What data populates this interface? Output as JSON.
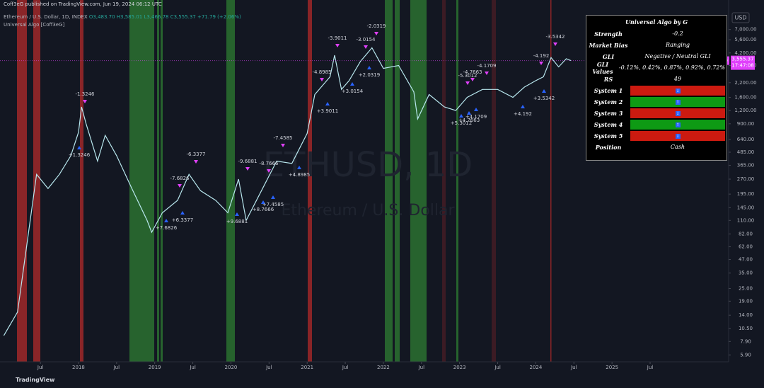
{
  "header": {
    "published": "Coff3eG published on TradingView.com, Jun 19, 2024 06:12 UTC",
    "symbol": "Ethereum / U.S. Dollar, 1D, INDEX",
    "ohlc": "O3,483.70 H3,585.01 L3,466.78 C3,555.37 +71.79 (+2.06%)",
    "indicator": "Universal Algo [Coff3eG]"
  },
  "watermark": {
    "symbol": "ETHUSD, 1D",
    "name": "Ethereum / U.S. Dollar"
  },
  "currency": "USD",
  "price_tag": {
    "symbol": "ETHUSD",
    "price": "3,555.37",
    "countdown": "17:47:08",
    "value": 3555.37
  },
  "chart": {
    "scale": "log",
    "ylim": [
      5.08,
      13290
    ],
    "xlim": [
      2016.97,
      2026.53
    ],
    "yticks": [
      {
        "value": 7000,
        "label": "7,000.00"
      },
      {
        "value": 5600,
        "label": "5,600.00"
      },
      {
        "value": 4200,
        "label": "4,200.00"
      },
      {
        "value": 3200,
        "label": "3,200.00"
      },
      {
        "value": 2200,
        "label": "2,200.00"
      },
      {
        "value": 1600,
        "label": "1,600.00"
      },
      {
        "value": 1200,
        "label": "1,200.00"
      },
      {
        "value": 900,
        "label": "900.00"
      },
      {
        "value": 640,
        "label": "640.00"
      },
      {
        "value": 485,
        "label": "485.00"
      },
      {
        "value": 365,
        "label": "365.00"
      },
      {
        "value": 270,
        "label": "270.00"
      },
      {
        "value": 195,
        "label": "195.00"
      },
      {
        "value": 145,
        "label": "145.00"
      },
      {
        "value": 110,
        "label": "110.00"
      },
      {
        "value": 82,
        "label": "82.00"
      },
      {
        "value": 62,
        "label": "62.00"
      },
      {
        "value": 47,
        "label": "47.00"
      },
      {
        "value": 35,
        "label": "35.00"
      },
      {
        "value": 25,
        "label": "25.00"
      },
      {
        "value": 19,
        "label": "19.00"
      },
      {
        "value": 14,
        "label": "14.00"
      },
      {
        "value": 10.5,
        "label": "10.50"
      },
      {
        "value": 7.9,
        "label": "7.90"
      },
      {
        "value": 5.9,
        "label": "5.90"
      }
    ],
    "xticks": [
      {
        "value": 2017.5,
        "label": "Jul"
      },
      {
        "value": 2018,
        "label": "2018"
      },
      {
        "value": 2018.5,
        "label": "Jul"
      },
      {
        "value": 2019,
        "label": "2019"
      },
      {
        "value": 2019.5,
        "label": "Jul"
      },
      {
        "value": 2020,
        "label": "2020"
      },
      {
        "value": 2020.5,
        "label": "Jul"
      },
      {
        "value": 2021,
        "label": "2021"
      },
      {
        "value": 2021.5,
        "label": "Jul"
      },
      {
        "value": 2022,
        "label": "2022"
      },
      {
        "value": 2022.5,
        "label": "Jul"
      },
      {
        "value": 2023,
        "label": "2023"
      },
      {
        "value": 2023.5,
        "label": "Jul"
      },
      {
        "value": 2024,
        "label": "2024"
      },
      {
        "value": 2024.5,
        "label": "Jul"
      },
      {
        "value": 2025,
        "label": "2025"
      },
      {
        "value": 2025.5,
        "label": "Jul"
      }
    ],
    "price": {
      "x": [
        2017.02,
        2017.2,
        2017.3,
        2017.45,
        2017.6,
        2017.75,
        2017.9,
        2018.0,
        2018.04,
        2018.1,
        2018.25,
        2018.35,
        2018.5,
        2018.7,
        2018.9,
        2018.96,
        2019.1,
        2019.3,
        2019.45,
        2019.6,
        2019.8,
        2019.96,
        2020.1,
        2020.2,
        2020.4,
        2020.6,
        2020.8,
        2021.0,
        2021.1,
        2021.3,
        2021.36,
        2021.45,
        2021.55,
        2021.7,
        2021.85,
        2022.0,
        2022.2,
        2022.4,
        2022.45,
        2022.6,
        2022.8,
        2022.95,
        2023.1,
        2023.3,
        2023.5,
        2023.7,
        2023.85,
        2024.0,
        2024.1,
        2024.2,
        2024.3,
        2024.4,
        2024.46
      ],
      "values": [
        9,
        15,
        50,
        300,
        220,
        300,
        450,
        750,
        1300,
        900,
        400,
        700,
        450,
        220,
        110,
        85,
        130,
        170,
        300,
        210,
        170,
        130,
        270,
        110,
        210,
        400,
        380,
        730,
        1700,
        2500,
        4000,
        1900,
        2300,
        3500,
        4700,
        3000,
        3200,
        1800,
        1000,
        1700,
        1300,
        1200,
        1600,
        1900,
        1900,
        1600,
        2000,
        2300,
        2500,
        3800,
        3100,
        3700,
        3555.37
      ]
    },
    "annotations": [
      "-1.3246",
      "+1.3246",
      "-6.3377",
      "+6.3377",
      "-7.6826",
      "+7.6826",
      "-9.6881",
      "+9.6881",
      "-8.7666",
      "+8.7666",
      "-7.4585",
      "+7.4585",
      "-4.8985",
      "+4.8985",
      "-3.9011",
      "+3.9011",
      "-3.0154",
      "+3.0154",
      "-2.0319",
      "+2.0319",
      "-5.3012",
      "+5.3012",
      "-4.7663",
      "+4.7663",
      "-4.1709",
      "+4.1709",
      "-4.192",
      "+4.192",
      "-3.5342",
      "+3.5342"
    ]
  },
  "table": {
    "title": "Universal Algo by G",
    "rows": [
      [
        "Strength",
        "-0.2"
      ],
      [
        "Market Bias",
        "Ranging"
      ],
      [
        "GLI",
        "Negative / Neutral GLI"
      ],
      [
        "GLI Values",
        "-0.12%, 0.42%, 0.87%, 0.92%, 0.72%"
      ],
      [
        "RS",
        "49"
      ]
    ],
    "systems": [
      {
        "name": "System 1",
        "color": "#cc1a10"
      },
      {
        "name": "System 2",
        "color": "#0e9a14"
      },
      {
        "name": "System 3",
        "color": "#cc1a10"
      },
      {
        "name": "System 4",
        "color": "#0e9a14"
      },
      {
        "name": "System 5",
        "color": "#cc1a10"
      }
    ],
    "position": [
      "Position",
      "Cash"
    ]
  },
  "footer": "TradingView"
}
